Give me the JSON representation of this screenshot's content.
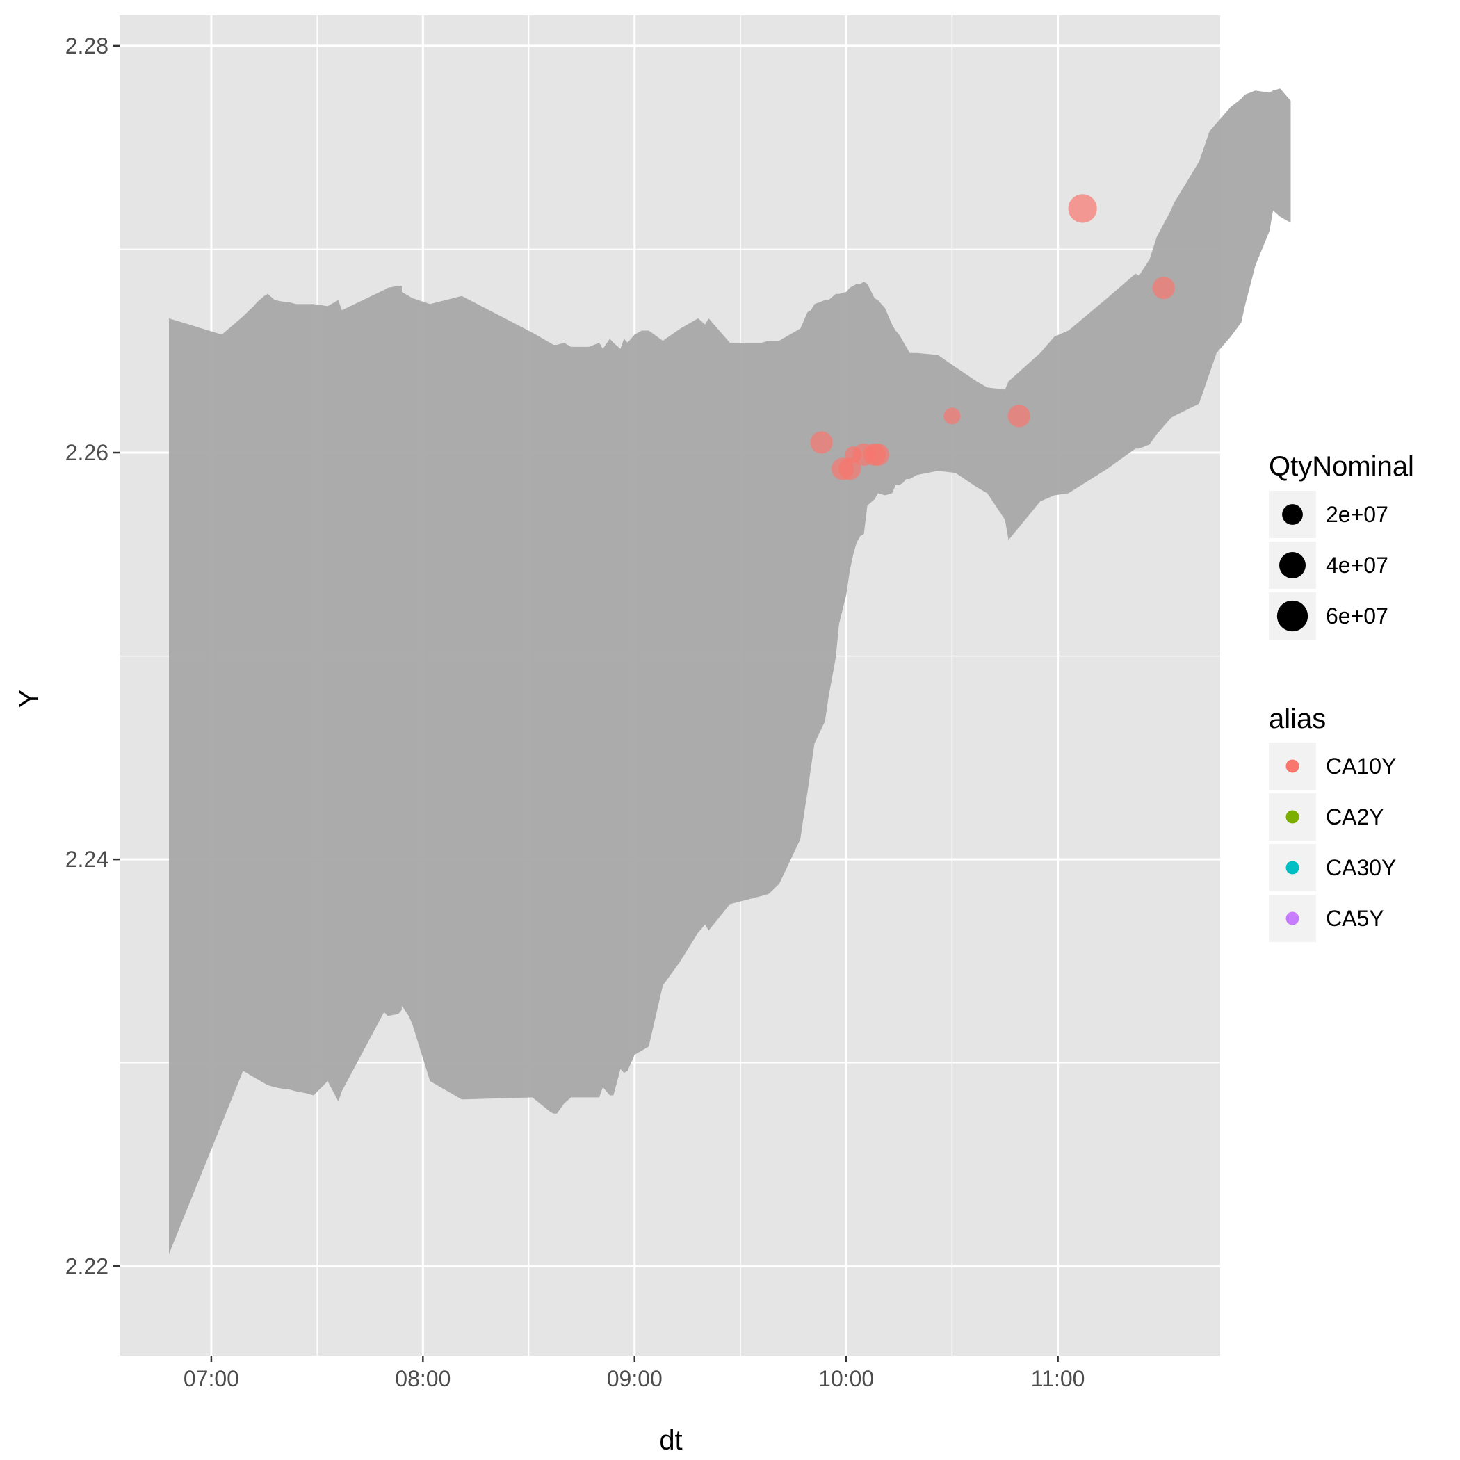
{
  "chart_data": {
    "type": "scatter",
    "xlabel": "dt",
    "ylabel": "Y",
    "x_ticks": [
      "07:00",
      "08:00",
      "09:00",
      "10:00",
      "11:00"
    ],
    "y_ticks": [
      "2.22",
      "2.24",
      "2.26",
      "2.28"
    ],
    "xlim": [
      "06:34",
      "11:46"
    ],
    "ylim": [
      2.2156,
      2.2815
    ],
    "grid": true,
    "legend_position": "right",
    "colors": {
      "panel": "#e5e5e5",
      "grid": "#ffffff",
      "ribbon": "#a8a8a8",
      "CA10Y": "#f8766d",
      "CA2Y": "#7cae00",
      "CA30Y": "#00bfc4",
      "CA5Y": "#c77cff"
    },
    "ribbon": {
      "upper": [
        [
          "06:48",
          2.2666
        ],
        [
          "07:03",
          2.2658
        ],
        [
          "07:09",
          2.2667
        ],
        [
          "07:12",
          2.2672
        ],
        [
          "07:13",
          2.2674
        ],
        [
          "07:15",
          2.2677
        ],
        [
          "07:16",
          2.2678
        ],
        [
          "07:18",
          2.2675
        ],
        [
          "07:21",
          2.2674
        ],
        [
          "07:22",
          2.2674
        ],
        [
          "07:24",
          2.2673
        ],
        [
          "07:27",
          2.2673
        ],
        [
          "07:29",
          2.2673
        ],
        [
          "07:33",
          2.2672
        ],
        [
          "07:36",
          2.2675
        ],
        [
          "07:37",
          2.267
        ],
        [
          "07:49",
          2.268
        ],
        [
          "07:50",
          2.2681
        ],
        [
          "07:53",
          2.2682
        ],
        [
          "07:54",
          2.2682
        ],
        [
          "07:54",
          2.2679
        ],
        [
          "07:56",
          2.2677
        ],
        [
          "07:57",
          2.2676
        ],
        [
          "08:02",
          2.2673
        ],
        [
          "08:11",
          2.2677
        ],
        [
          "08:31",
          2.2659
        ],
        [
          "08:36",
          2.2654
        ],
        [
          "08:37",
          2.2653
        ],
        [
          "08:38",
          2.2653
        ],
        [
          "08:40",
          2.2654
        ],
        [
          "08:42",
          2.2652
        ],
        [
          "08:47",
          2.2652
        ],
        [
          "08:50",
          2.2654
        ],
        [
          "08:51",
          2.2651
        ],
        [
          "08:53",
          2.2656
        ],
        [
          "08:54",
          2.2654
        ],
        [
          "08:56",
          2.2651
        ],
        [
          "08:57",
          2.2656
        ],
        [
          "08:58",
          2.2654
        ],
        [
          "09:00",
          2.2658
        ],
        [
          "09:02",
          2.266
        ],
        [
          "09:04",
          2.266
        ],
        [
          "09:08",
          2.2655
        ],
        [
          "09:13",
          2.2661
        ],
        [
          "09:18",
          2.2666
        ],
        [
          "09:20",
          2.2663
        ],
        [
          "09:21",
          2.2666
        ],
        [
          "09:27",
          2.2654
        ],
        [
          "09:36",
          2.2654
        ],
        [
          "09:38",
          2.2655
        ],
        [
          "09:41",
          2.2655
        ],
        [
          "09:47",
          2.2661
        ],
        [
          "09:48",
          2.2665
        ],
        [
          "09:49",
          2.2669
        ],
        [
          "09:50",
          2.267
        ],
        [
          "09:51",
          2.2673
        ],
        [
          "09:54",
          2.2675
        ],
        [
          "09:55",
          2.2675
        ],
        [
          "09:57",
          2.2678
        ],
        [
          "09:58",
          2.2678
        ],
        [
          "10:00",
          2.2679
        ],
        [
          "10:01",
          2.2681
        ],
        [
          "10:02",
          2.2682
        ],
        [
          "10:03",
          2.2683
        ],
        [
          "10:04",
          2.2683
        ],
        [
          "10:05",
          2.2684
        ],
        [
          "10:06",
          2.2683
        ],
        [
          "10:08",
          2.2676
        ],
        [
          "10:09",
          2.2675
        ],
        [
          "10:11",
          2.2671
        ],
        [
          "10:13",
          2.2663
        ],
        [
          "10:14",
          2.266
        ],
        [
          "10:15",
          2.2658
        ],
        [
          "10:16",
          2.2655
        ],
        [
          "10:17",
          2.2652
        ],
        [
          "10:18",
          2.2649
        ],
        [
          "10:20",
          2.2649
        ],
        [
          "10:26",
          2.2648
        ],
        [
          "10:31",
          2.2642
        ],
        [
          "10:37",
          2.2635
        ],
        [
          "10:40",
          2.2632
        ],
        [
          "10:45",
          2.2631
        ],
        [
          "10:46",
          2.2635
        ],
        [
          "10:55",
          2.2649
        ],
        [
          "10:59",
          2.2657
        ],
        [
          "11:03",
          2.266
        ],
        [
          "11:14",
          2.2676
        ],
        [
          "11:22",
          2.2688
        ],
        [
          "11:23",
          2.2687
        ],
        [
          "11:26",
          2.2695
        ],
        [
          "11:28",
          2.2706
        ],
        [
          "11:32",
          2.2719
        ],
        [
          "11:33",
          2.2723
        ],
        [
          "11:40",
          2.2743
        ],
        [
          "11:43",
          2.2758
        ],
        [
          "11:45",
          2.2762
        ],
        [
          "11:49",
          2.277
        ],
        [
          "11:52",
          2.2774
        ],
        [
          "11:53",
          2.2776
        ],
        [
          "11:56",
          2.2778
        ],
        [
          "12:00",
          2.2777
        ],
        [
          "12:01",
          2.2778
        ],
        [
          "12:03",
          2.2779
        ],
        [
          "12:04",
          2.2777
        ],
        [
          "12:06",
          2.2773
        ]
      ],
      "lower": [
        [
          "06:48",
          2.2206
        ],
        [
          "07:09",
          2.2296
        ],
        [
          "07:12",
          2.2293
        ],
        [
          "07:13",
          2.2292
        ],
        [
          "07:15",
          2.229
        ],
        [
          "07:16",
          2.2289
        ],
        [
          "07:18",
          2.2288
        ],
        [
          "07:21",
          2.2287
        ],
        [
          "07:22",
          2.2287
        ],
        [
          "07:24",
          2.2286
        ],
        [
          "07:27",
          2.2285
        ],
        [
          "07:29",
          2.2284
        ],
        [
          "07:33",
          2.2291
        ],
        [
          "07:36",
          2.2281
        ],
        [
          "07:37",
          2.2286
        ],
        [
          "07:49",
          2.2325
        ],
        [
          "07:50",
          2.2323
        ],
        [
          "07:53",
          2.2324
        ],
        [
          "07:54",
          2.2326
        ],
        [
          "07:54",
          2.2328
        ],
        [
          "07:56",
          2.2323
        ],
        [
          "07:57",
          2.2319
        ],
        [
          "08:02",
          2.2291
        ],
        [
          "08:11",
          2.2282
        ],
        [
          "08:31",
          2.2283
        ],
        [
          "08:36",
          2.2276
        ],
        [
          "08:37",
          2.2275
        ],
        [
          "08:38",
          2.2275
        ],
        [
          "08:40",
          2.228
        ],
        [
          "08:42",
          2.2283
        ],
        [
          "08:47",
          2.2283
        ],
        [
          "08:50",
          2.2283
        ],
        [
          "08:51",
          2.2288
        ],
        [
          "08:53",
          2.2284
        ],
        [
          "08:54",
          2.2284
        ],
        [
          "08:56",
          2.2297
        ],
        [
          "08:57",
          2.2295
        ],
        [
          "08:58",
          2.2296
        ],
        [
          "09:00",
          2.2304
        ],
        [
          "09:02",
          2.2306
        ],
        [
          "09:04",
          2.2308
        ],
        [
          "09:08",
          2.2338
        ],
        [
          "09:13",
          2.235
        ],
        [
          "09:18",
          2.2364
        ],
        [
          "09:20",
          2.2368
        ],
        [
          "09:21",
          2.2365
        ],
        [
          "09:27",
          2.2378
        ],
        [
          "09:36",
          2.2382
        ],
        [
          "09:38",
          2.2383
        ],
        [
          "09:41",
          2.2388
        ],
        [
          "09:47",
          2.241
        ],
        [
          "09:48",
          2.2422
        ],
        [
          "09:49",
          2.2433
        ],
        [
          "09:50",
          2.2445
        ],
        [
          "09:51",
          2.2457
        ],
        [
          "09:54",
          2.2468
        ],
        [
          "09:55",
          2.248
        ],
        [
          "09:57",
          2.2499
        ],
        [
          "09:58",
          2.2516
        ],
        [
          "10:00",
          2.253
        ],
        [
          "10:01",
          2.2542
        ],
        [
          "10:02",
          2.255
        ],
        [
          "10:03",
          2.2556
        ],
        [
          "10:04",
          2.2559
        ],
        [
          "10:05",
          2.256
        ],
        [
          "10:06",
          2.2574
        ],
        [
          "10:08",
          2.2577
        ],
        [
          "10:09",
          2.258
        ],
        [
          "10:11",
          2.2579
        ],
        [
          "10:13",
          2.258
        ],
        [
          "10:14",
          2.2584
        ],
        [
          "10:15",
          2.2584
        ],
        [
          "10:16",
          2.2585
        ],
        [
          "10:17",
          2.2587
        ],
        [
          "10:18",
          2.2587
        ],
        [
          "10:20",
          2.2589
        ],
        [
          "10:26",
          2.2591
        ],
        [
          "10:31",
          2.259
        ],
        [
          "10:37",
          2.2583
        ],
        [
          "10:40",
          2.258
        ],
        [
          "10:45",
          2.2567
        ],
        [
          "10:46",
          2.2557
        ],
        [
          "10:55",
          2.2576
        ],
        [
          "10:59",
          2.2579
        ],
        [
          "11:03",
          2.258
        ],
        [
          "11:14",
          2.2592
        ],
        [
          "11:22",
          2.2602
        ],
        [
          "11:23",
          2.2602
        ],
        [
          "11:26",
          2.2604
        ],
        [
          "11:28",
          2.2609
        ],
        [
          "11:32",
          2.2617
        ],
        [
          "11:33",
          2.2618
        ],
        [
          "11:40",
          2.2624
        ],
        [
          "11:43",
          2.2639
        ],
        [
          "11:45",
          2.2649
        ],
        [
          "11:49",
          2.2657
        ],
        [
          "11:52",
          2.2664
        ],
        [
          "11:53",
          2.2672
        ],
        [
          "11:56",
          2.2692
        ],
        [
          "12:00",
          2.2709
        ],
        [
          "12:01",
          2.2719
        ],
        [
          "12:03",
          2.2716
        ],
        [
          "12:04",
          2.2715
        ],
        [
          "12:06",
          2.2713
        ]
      ]
    },
    "series": [
      {
        "name": "CA10Y",
        "points": [
          {
            "x": "09:53",
            "y": 2.2605,
            "size": 25000000.0
          },
          {
            "x": "09:59",
            "y": 2.2592,
            "size": 25000000.0
          },
          {
            "x": "10:01",
            "y": 2.2592,
            "size": 25000000.0
          },
          {
            "x": "10:02",
            "y": 2.2599,
            "size": 10000000.0
          },
          {
            "x": "10:05",
            "y": 2.2599,
            "size": 25000000.0
          },
          {
            "x": "10:08",
            "y": 2.2599,
            "size": 25000000.0
          },
          {
            "x": "10:09",
            "y": 2.2599,
            "size": 25000000.0
          },
          {
            "x": "10:30",
            "y": 2.2618,
            "size": 10000000.0
          },
          {
            "x": "10:49",
            "y": 2.2618,
            "size": 25000000.0
          },
          {
            "x": "11:07",
            "y": 2.272,
            "size": 50000000.0
          },
          {
            "x": "11:30",
            "y": 2.2681,
            "size": 25000000.0
          }
        ]
      }
    ],
    "legends": {
      "size": {
        "title": "QtyNominal",
        "items": [
          {
            "label": "2e+07",
            "value": 20000000.0
          },
          {
            "label": "4e+07",
            "value": 40000000.0
          },
          {
            "label": "6e+07",
            "value": 60000000.0
          }
        ]
      },
      "color": {
        "title": "alias",
        "items": [
          {
            "label": "CA10Y",
            "color": "#f8766d"
          },
          {
            "label": "CA2Y",
            "color": "#7cae00"
          },
          {
            "label": "CA30Y",
            "color": "#00bfc4"
          },
          {
            "label": "CA5Y",
            "color": "#c77cff"
          }
        ]
      }
    }
  }
}
